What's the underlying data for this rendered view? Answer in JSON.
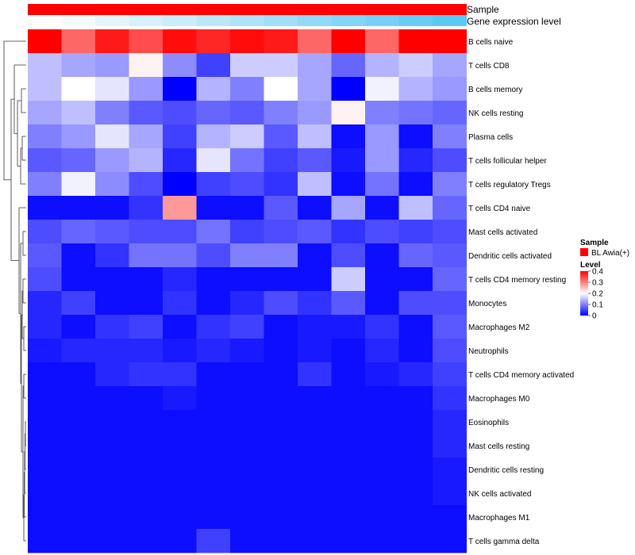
{
  "chart_data": {
    "type": "heatmap",
    "annotation_tracks": [
      "Sample",
      "Gene expression level"
    ],
    "sample_track_value": "BL Awia(+)",
    "gene_expression_level": [
      0.0,
      0.08,
      0.17,
      0.25,
      0.33,
      0.42,
      0.5,
      0.58,
      0.67,
      0.75,
      0.83,
      0.92,
      1.0
    ],
    "rows": [
      "B cells naive",
      "T cells CD8",
      "B cells memory",
      "NK cells resting",
      "Plasma cells",
      "T cells follicular helper",
      "T cells regulatory  Tregs",
      "T cells CD4 naive",
      "Mast cells activated",
      "Dendritic cells activated",
      "T cells CD4 memory resting",
      "Monocytes",
      "Macrophages M2",
      "Neutrophils",
      "T cells CD4 memory activated",
      "Macrophages M0",
      "Eosinophils",
      "Mast cells resting",
      "Dendritic cells resting",
      "NK cells activated",
      "Macrophages M1",
      "T cells gamma delta"
    ],
    "values": [
      [
        0.4,
        0.32,
        0.38,
        0.34,
        0.39,
        0.37,
        0.39,
        0.38,
        0.32,
        0.4,
        0.32,
        0.4,
        0.5
      ],
      [
        0.15,
        0.13,
        0.12,
        0.21,
        0.11,
        0.05,
        0.16,
        0.16,
        0.13,
        0.08,
        0.14,
        0.16,
        0.13
      ],
      [
        0.15,
        0.2,
        0.18,
        0.12,
        0.0,
        0.14,
        0.1,
        0.2,
        0.13,
        0.0,
        0.19,
        0.14,
        0.12
      ],
      [
        0.13,
        0.15,
        0.1,
        0.07,
        0.06,
        0.08,
        0.07,
        0.1,
        0.12,
        0.21,
        0.1,
        0.09,
        0.08
      ],
      [
        0.1,
        0.12,
        0.18,
        0.13,
        0.05,
        0.14,
        0.16,
        0.07,
        0.15,
        0.01,
        0.12,
        0.01,
        0.1
      ],
      [
        0.07,
        0.08,
        0.12,
        0.14,
        0.03,
        0.18,
        0.09,
        0.05,
        0.07,
        0.02,
        0.12,
        0.03,
        0.06
      ],
      [
        0.1,
        0.19,
        0.11,
        0.06,
        0.0,
        0.05,
        0.06,
        0.04,
        0.15,
        0.01,
        0.09,
        0.01,
        0.1
      ],
      [
        0.01,
        0.01,
        0.01,
        0.04,
        0.28,
        0.01,
        0.01,
        0.07,
        0.01,
        0.13,
        0.01,
        0.15,
        0.08
      ],
      [
        0.06,
        0.08,
        0.07,
        0.06,
        0.06,
        0.09,
        0.05,
        0.06,
        0.07,
        0.04,
        0.06,
        0.05,
        0.06
      ],
      [
        0.07,
        0.01,
        0.04,
        0.09,
        0.09,
        0.06,
        0.1,
        0.1,
        0.01,
        0.06,
        0.01,
        0.08,
        0.07
      ],
      [
        0.06,
        0.01,
        0.01,
        0.01,
        0.03,
        0.01,
        0.01,
        0.01,
        0.01,
        0.16,
        0.01,
        0.01,
        0.08
      ],
      [
        0.03,
        0.05,
        0.01,
        0.01,
        0.04,
        0.01,
        0.03,
        0.06,
        0.04,
        0.07,
        0.01,
        0.06,
        0.06
      ],
      [
        0.03,
        0.01,
        0.04,
        0.05,
        0.01,
        0.04,
        0.05,
        0.01,
        0.02,
        0.02,
        0.04,
        0.01,
        0.07
      ],
      [
        0.02,
        0.03,
        0.03,
        0.03,
        0.02,
        0.03,
        0.02,
        0.01,
        0.02,
        0.01,
        0.03,
        0.01,
        0.06
      ],
      [
        0.01,
        0.01,
        0.03,
        0.04,
        0.04,
        0.01,
        0.01,
        0.01,
        0.04,
        0.01,
        0.02,
        0.03,
        0.05
      ],
      [
        0.01,
        0.01,
        0.01,
        0.01,
        0.02,
        0.01,
        0.01,
        0.01,
        0.01,
        0.01,
        0.01,
        0.01,
        0.04
      ],
      [
        0.01,
        0.01,
        0.01,
        0.01,
        0.01,
        0.01,
        0.01,
        0.01,
        0.01,
        0.01,
        0.01,
        0.01,
        0.03
      ],
      [
        0.01,
        0.01,
        0.01,
        0.01,
        0.01,
        0.01,
        0.01,
        0.01,
        0.01,
        0.01,
        0.01,
        0.01,
        0.03
      ],
      [
        0.01,
        0.01,
        0.01,
        0.01,
        0.01,
        0.01,
        0.01,
        0.01,
        0.01,
        0.01,
        0.01,
        0.01,
        0.02
      ],
      [
        0.01,
        0.01,
        0.01,
        0.01,
        0.01,
        0.01,
        0.01,
        0.01,
        0.01,
        0.01,
        0.01,
        0.01,
        0.02
      ],
      [
        0.01,
        0.01,
        0.01,
        0.01,
        0.01,
        0.01,
        0.01,
        0.01,
        0.01,
        0.01,
        0.01,
        0.01,
        0.01
      ],
      [
        0.01,
        0.01,
        0.01,
        0.01,
        0.01,
        0.05,
        0.01,
        0.01,
        0.01,
        0.01,
        0.01,
        0.01,
        0.01
      ]
    ],
    "color_scale": {
      "domain": [
        0,
        0.2,
        0.4
      ],
      "colors": [
        "#0000ff",
        "#ffffff",
        "#ff0000"
      ],
      "ticks": [
        "0.4",
        "0.3",
        "0.2",
        "0.1",
        "0"
      ]
    },
    "legend": {
      "sample_title": "Sample",
      "sample_entry": "BL Awia(+)",
      "sample_color": "#ff0000",
      "level_title": "Level",
      "position": "right"
    },
    "expression_colors": [
      "#ffffff",
      "#5bc8f5"
    ],
    "dendrogram": "row clustering tree on the left"
  }
}
